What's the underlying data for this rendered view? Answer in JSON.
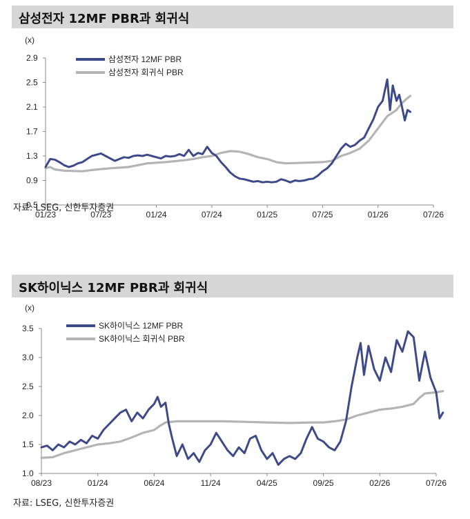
{
  "chart_data": [
    {
      "type": "line",
      "title": "삼성전자 12MF PBR과 회귀식",
      "unit_label": "(x)",
      "source": "자료: LSEG, 신한투자증권",
      "yticks": [
        "2.9",
        "2.5",
        "2.1",
        "1.7",
        "1.3",
        "0.9",
        "0.5"
      ],
      "ylim": [
        0.5,
        2.9
      ],
      "xticks": [
        "01/23",
        "07/23",
        "01/24",
        "07/24",
        "01/25",
        "07/25",
        "01/26",
        "07/26"
      ],
      "xlim": [
        0,
        42
      ],
      "series": [
        {
          "name": "삼성전자 12MF PBR",
          "color": "#3d4a8a",
          "points": [
            [
              0,
              1.12
            ],
            [
              0.5,
              1.25
            ],
            [
              1,
              1.24
            ],
            [
              1.5,
              1.2
            ],
            [
              2,
              1.15
            ],
            [
              2.5,
              1.12
            ],
            [
              3,
              1.14
            ],
            [
              3.5,
              1.18
            ],
            [
              4,
              1.2
            ],
            [
              4.5,
              1.25
            ],
            [
              5,
              1.3
            ],
            [
              5.5,
              1.32
            ],
            [
              6,
              1.34
            ],
            [
              6.5,
              1.3
            ],
            [
              7,
              1.26
            ],
            [
              7.5,
              1.22
            ],
            [
              8,
              1.25
            ],
            [
              8.5,
              1.28
            ],
            [
              9,
              1.27
            ],
            [
              9.5,
              1.3
            ],
            [
              10,
              1.31
            ],
            [
              10.5,
              1.3
            ],
            [
              11,
              1.32
            ],
            [
              11.5,
              1.3
            ],
            [
              12,
              1.28
            ],
            [
              12.5,
              1.26
            ],
            [
              13,
              1.3
            ],
            [
              13.5,
              1.29
            ],
            [
              14,
              1.3
            ],
            [
              14.5,
              1.33
            ],
            [
              15,
              1.3
            ],
            [
              15.5,
              1.4
            ],
            [
              16,
              1.3
            ],
            [
              16.5,
              1.35
            ],
            [
              17,
              1.33
            ],
            [
              17.5,
              1.45
            ],
            [
              18,
              1.35
            ],
            [
              18.5,
              1.3
            ],
            [
              19,
              1.2
            ],
            [
              19.5,
              1.12
            ],
            [
              20,
              1.03
            ],
            [
              20.5,
              0.97
            ],
            [
              21,
              0.93
            ],
            [
              21.5,
              0.92
            ],
            [
              22,
              0.9
            ],
            [
              22.5,
              0.88
            ],
            [
              23,
              0.89
            ],
            [
              23.5,
              0.87
            ],
            [
              24,
              0.88
            ],
            [
              24.5,
              0.87
            ],
            [
              25,
              0.88
            ],
            [
              25.5,
              0.92
            ],
            [
              26,
              0.9
            ],
            [
              26.5,
              0.87
            ],
            [
              27,
              0.9
            ],
            [
              27.5,
              0.89
            ],
            [
              28,
              0.9
            ],
            [
              28.5,
              0.92
            ],
            [
              29,
              0.93
            ],
            [
              29.5,
              0.98
            ],
            [
              30,
              1.05
            ],
            [
              30.5,
              1.1
            ],
            [
              31,
              1.18
            ],
            [
              31.5,
              1.3
            ],
            [
              32,
              1.42
            ],
            [
              32.5,
              1.5
            ],
            [
              33,
              1.45
            ],
            [
              33.5,
              1.48
            ],
            [
              34,
              1.55
            ],
            [
              34.5,
              1.6
            ],
            [
              35,
              1.75
            ],
            [
              35.5,
              1.9
            ],
            [
              36,
              2.1
            ],
            [
              36.5,
              2.2
            ],
            [
              37,
              2.55
            ],
            [
              37.3,
              2.05
            ],
            [
              37.6,
              2.45
            ],
            [
              38,
              2.2
            ],
            [
              38.3,
              2.3
            ],
            [
              38.6,
              2.1
            ],
            [
              38.9,
              1.88
            ],
            [
              39.2,
              2.05
            ],
            [
              39.5,
              2.02
            ]
          ]
        },
        {
          "name": "삼성전자 회귀식 PBR",
          "color": "#b4b4b4",
          "points": [
            [
              0,
              1.1
            ],
            [
              0.5,
              1.12
            ],
            [
              1,
              1.08
            ],
            [
              2,
              1.06
            ],
            [
              4,
              1.05
            ],
            [
              5,
              1.07
            ],
            [
              7,
              1.1
            ],
            [
              9,
              1.12
            ],
            [
              11,
              1.18
            ],
            [
              13,
              1.2
            ],
            [
              15,
              1.23
            ],
            [
              16,
              1.25
            ],
            [
              17,
              1.28
            ],
            [
              18,
              1.3
            ],
            [
              19,
              1.35
            ],
            [
              20,
              1.38
            ],
            [
              21,
              1.37
            ],
            [
              22,
              1.33
            ],
            [
              23,
              1.28
            ],
            [
              24,
              1.25
            ],
            [
              25,
              1.2
            ],
            [
              26,
              1.18
            ],
            [
              28,
              1.19
            ],
            [
              30,
              1.2
            ],
            [
              31,
              1.22
            ],
            [
              32,
              1.3
            ],
            [
              33,
              1.35
            ],
            [
              34,
              1.42
            ],
            [
              35,
              1.55
            ],
            [
              36,
              1.75
            ],
            [
              37,
              1.95
            ],
            [
              38,
              2.05
            ],
            [
              38.5,
              2.15
            ],
            [
              39,
              2.22
            ],
            [
              39.5,
              2.28
            ]
          ]
        }
      ]
    },
    {
      "type": "line",
      "title": "SK하이닉스 12MF PBR과 회귀식",
      "unit_label": "(x)",
      "source": "자료: LSEG, 신한투자증권",
      "yticks": [
        "3.5",
        "3.0",
        "2.5",
        "2.0",
        "1.5",
        "1.0"
      ],
      "ylim": [
        1.0,
        3.5
      ],
      "xticks": [
        "08/23",
        "01/24",
        "06/24",
        "11/24",
        "04/25",
        "09/25",
        "02/26",
        "07/26"
      ],
      "xlim": [
        0,
        35
      ],
      "series": [
        {
          "name": "SK하이닉스 12MF PBR",
          "color": "#3d4a8a",
          "points": [
            [
              0,
              1.45
            ],
            [
              0.5,
              1.48
            ],
            [
              1,
              1.4
            ],
            [
              1.5,
              1.5
            ],
            [
              2,
              1.45
            ],
            [
              2.5,
              1.55
            ],
            [
              3,
              1.5
            ],
            [
              3.5,
              1.58
            ],
            [
              4,
              1.52
            ],
            [
              4.5,
              1.65
            ],
            [
              5,
              1.6
            ],
            [
              5.5,
              1.75
            ],
            [
              6,
              1.85
            ],
            [
              6.5,
              1.95
            ],
            [
              7,
              2.05
            ],
            [
              7.5,
              2.1
            ],
            [
              8,
              1.9
            ],
            [
              8.5,
              2.05
            ],
            [
              9,
              1.95
            ],
            [
              9.5,
              2.1
            ],
            [
              10,
              2.2
            ],
            [
              10.3,
              2.32
            ],
            [
              10.6,
              2.15
            ],
            [
              11,
              2.22
            ],
            [
              11.3,
              1.85
            ],
            [
              11.6,
              1.6
            ],
            [
              12,
              1.3
            ],
            [
              12.5,
              1.5
            ],
            [
              13,
              1.25
            ],
            [
              13.5,
              1.35
            ],
            [
              14,
              1.2
            ],
            [
              14.5,
              1.4
            ],
            [
              15,
              1.5
            ],
            [
              15.5,
              1.7
            ],
            [
              16,
              1.55
            ],
            [
              16.5,
              1.4
            ],
            [
              17,
              1.3
            ],
            [
              17.5,
              1.45
            ],
            [
              18,
              1.35
            ],
            [
              18.5,
              1.6
            ],
            [
              19,
              1.65
            ],
            [
              19.5,
              1.4
            ],
            [
              20,
              1.25
            ],
            [
              20.5,
              1.35
            ],
            [
              21,
              1.15
            ],
            [
              21.5,
              1.25
            ],
            [
              22,
              1.3
            ],
            [
              22.5,
              1.25
            ],
            [
              23,
              1.35
            ],
            [
              23.5,
              1.6
            ],
            [
              24,
              1.8
            ],
            [
              24.5,
              1.6
            ],
            [
              25,
              1.55
            ],
            [
              25.5,
              1.45
            ],
            [
              26,
              1.4
            ],
            [
              26.5,
              1.55
            ],
            [
              27,
              1.9
            ],
            [
              27.5,
              2.5
            ],
            [
              28,
              3.0
            ],
            [
              28.3,
              3.25
            ],
            [
              28.6,
              2.7
            ],
            [
              29,
              3.2
            ],
            [
              29.5,
              2.8
            ],
            [
              30,
              2.6
            ],
            [
              30.5,
              3.0
            ],
            [
              31,
              2.75
            ],
            [
              31.5,
              3.3
            ],
            [
              32,
              3.1
            ],
            [
              32.5,
              3.45
            ],
            [
              33,
              3.35
            ],
            [
              33.5,
              2.6
            ],
            [
              34,
              3.1
            ],
            [
              34.5,
              2.65
            ],
            [
              35,
              2.4
            ],
            [
              35.3,
              1.95
            ],
            [
              35.6,
              2.05
            ]
          ]
        },
        {
          "name": "SK하이닉스 회귀식 PBR",
          "color": "#b4b4b4",
          "points": [
            [
              0,
              1.27
            ],
            [
              1,
              1.28
            ],
            [
              2,
              1.35
            ],
            [
              3,
              1.4
            ],
            [
              4,
              1.45
            ],
            [
              5,
              1.5
            ],
            [
              6,
              1.52
            ],
            [
              7,
              1.55
            ],
            [
              8,
              1.62
            ],
            [
              9,
              1.7
            ],
            [
              10,
              1.75
            ],
            [
              10.5,
              1.82
            ],
            [
              11,
              1.88
            ],
            [
              12,
              1.9
            ],
            [
              14,
              1.9
            ],
            [
              16,
              1.9
            ],
            [
              18,
              1.89
            ],
            [
              20,
              1.88
            ],
            [
              22,
              1.87
            ],
            [
              24,
              1.88
            ],
            [
              25,
              1.88
            ],
            [
              26,
              1.9
            ],
            [
              27,
              1.93
            ],
            [
              28,
              2.0
            ],
            [
              29,
              2.05
            ],
            [
              30,
              2.1
            ],
            [
              31,
              2.12
            ],
            [
              32,
              2.15
            ],
            [
              33,
              2.2
            ],
            [
              33.5,
              2.3
            ],
            [
              34,
              2.38
            ],
            [
              35,
              2.4
            ],
            [
              35.6,
              2.42
            ]
          ]
        }
      ]
    }
  ]
}
